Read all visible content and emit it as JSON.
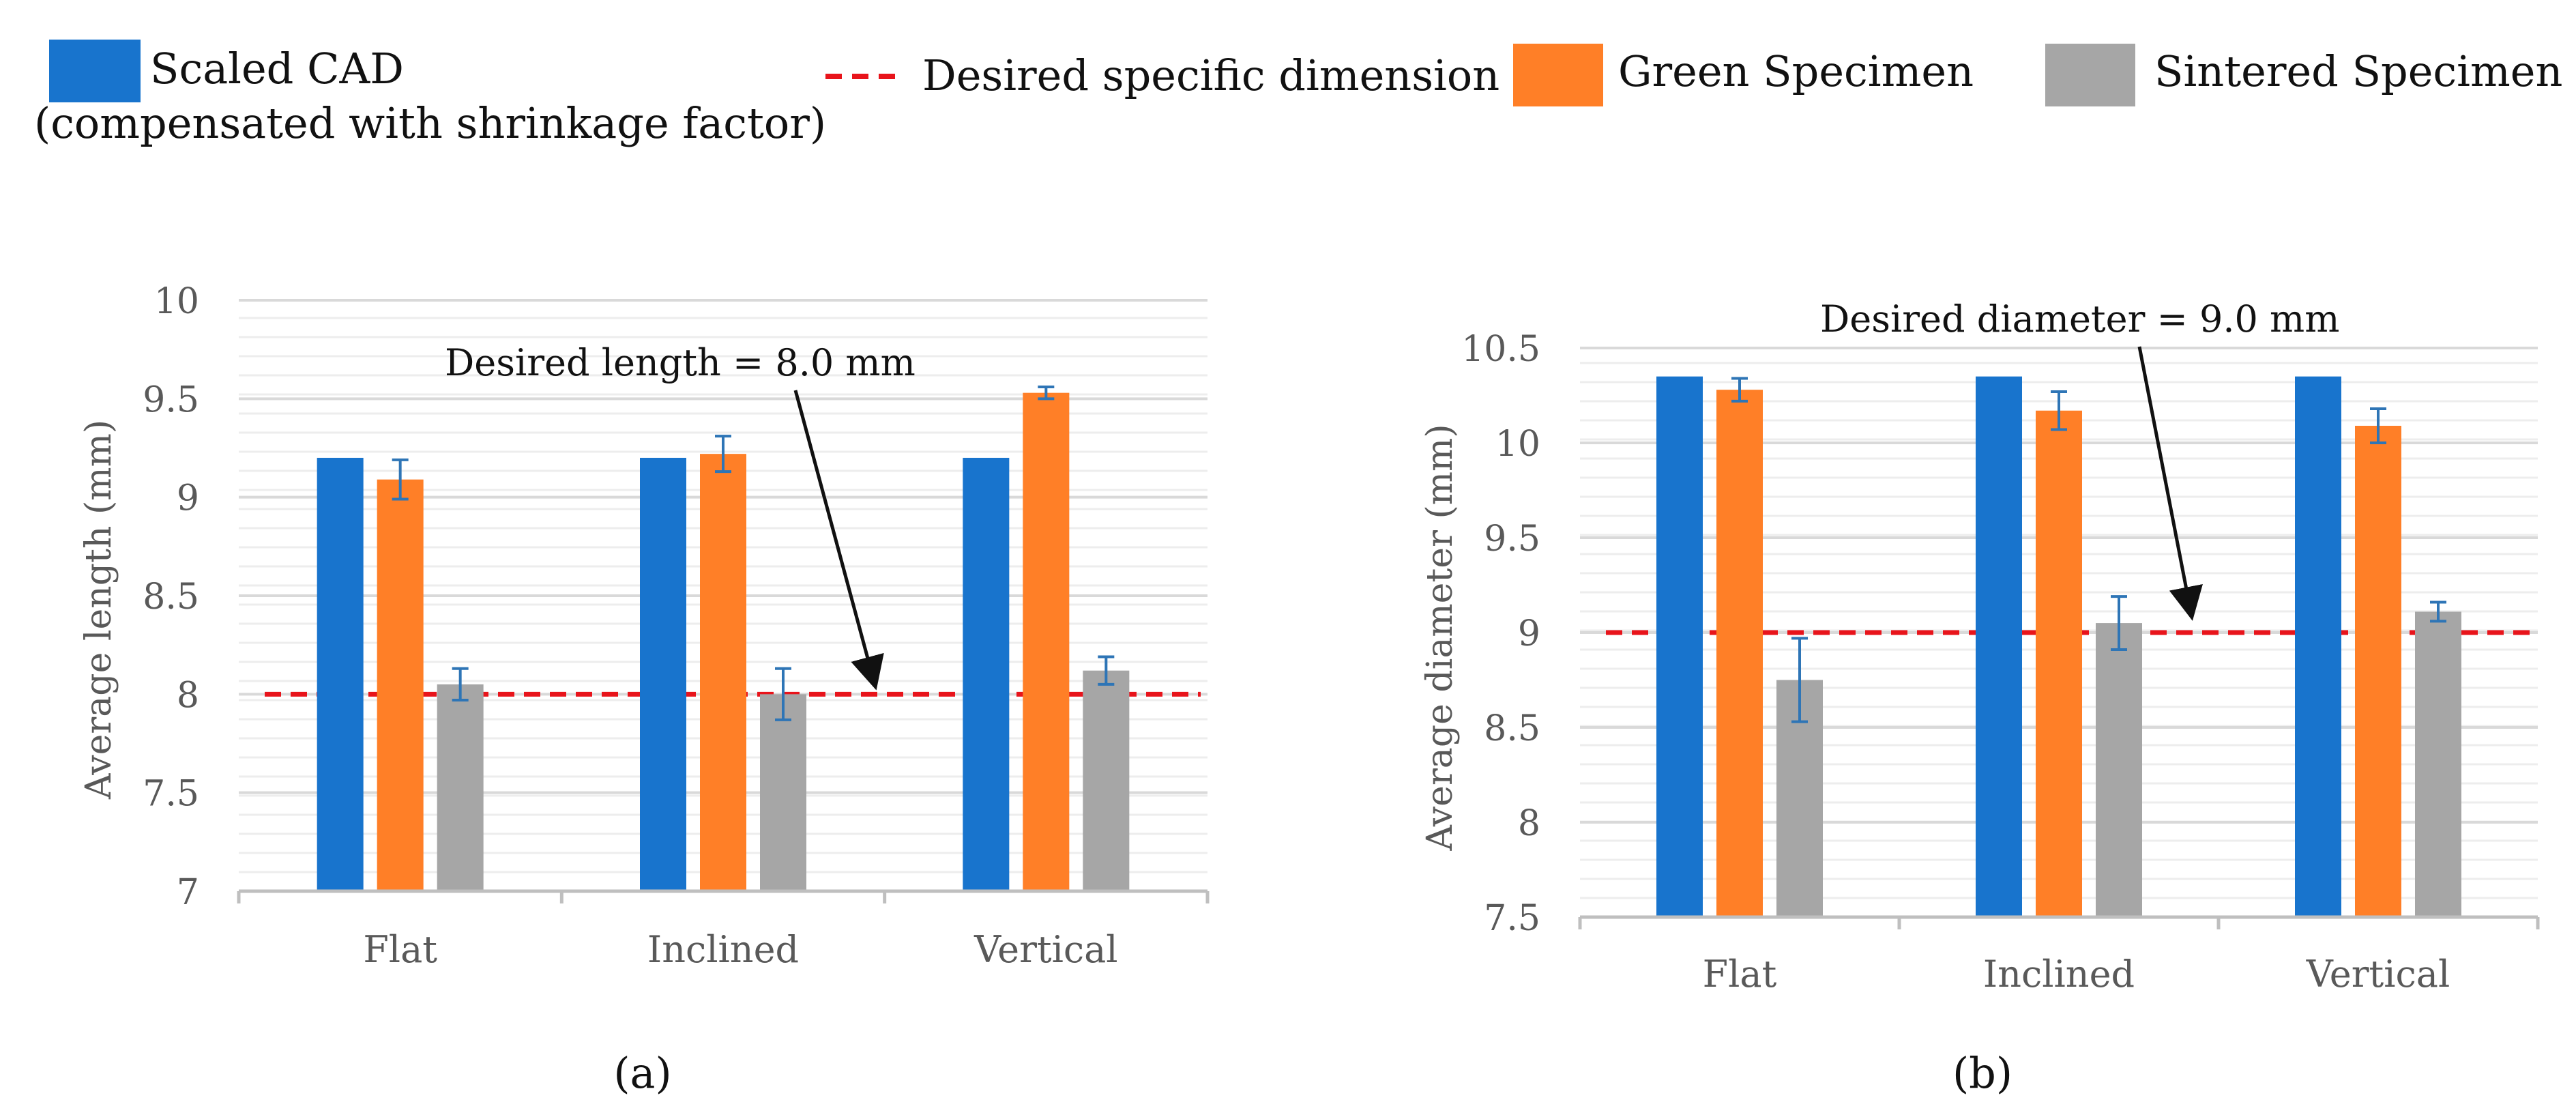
{
  "legend": {
    "items": [
      {
        "label": "Scaled CAD",
        "sublabel": "(compensated with shrinkage factor)",
        "kind": "swatch",
        "color": "#1874CD"
      },
      {
        "label": "Desired specific dimension",
        "kind": "dashed-line",
        "color": "#E8141B"
      },
      {
        "label": "Green Specimen",
        "kind": "swatch",
        "color": "#FF7F27"
      },
      {
        "label": "Sintered Specimen",
        "kind": "swatch",
        "color": "#A6A6A6"
      }
    ]
  },
  "colors": {
    "cad": "#1874CD",
    "green": "#FF7F27",
    "sintered": "#A6A6A6",
    "desired_line": "#E8141B",
    "error_bar": "#2E75B6",
    "grid": "#D9D9D9",
    "axis": "#BFBFBF",
    "tick_text": "#595959"
  },
  "chart_data": [
    {
      "type": "bar",
      "panel_label": "(a)",
      "categories": [
        "Flat",
        "Inclined",
        "Vertical"
      ],
      "series": [
        {
          "name": "Scaled CAD",
          "values": [
            9.2,
            9.2,
            9.2
          ],
          "errors": [
            0,
            0,
            0
          ]
        },
        {
          "name": "Green Specimen",
          "values": [
            9.09,
            9.22,
            9.53
          ],
          "errors": [
            0.1,
            0.09,
            0.03
          ]
        },
        {
          "name": "Sintered Specimen",
          "values": [
            8.05,
            8.0,
            8.12
          ],
          "errors": [
            0.08,
            0.13,
            0.07
          ]
        }
      ],
      "ylabel": "Average length (mm)",
      "xlabel": "",
      "ylim": [
        7,
        10
      ],
      "yticks": [
        7,
        7.5,
        8,
        8.5,
        9,
        9.5,
        10
      ],
      "ytick_labels": [
        "7",
        "7.5",
        "8",
        "8.5",
        "9",
        "9.5",
        "10"
      ],
      "desired_value": 8.0,
      "annotation": "Desired length = 8.0 mm"
    },
    {
      "type": "bar",
      "panel_label": "(b)",
      "categories": [
        "Flat",
        "Inclined",
        "Vertical"
      ],
      "series": [
        {
          "name": "Scaled CAD",
          "values": [
            10.35,
            10.35,
            10.35
          ],
          "errors": [
            0,
            0,
            0
          ]
        },
        {
          "name": "Green Specimen",
          "values": [
            10.28,
            10.17,
            10.09
          ],
          "errors": [
            0.06,
            0.1,
            0.09
          ]
        },
        {
          "name": "Sintered Specimen",
          "values": [
            8.75,
            9.05,
            9.11
          ],
          "errors": [
            0.22,
            0.14,
            0.05
          ]
        }
      ],
      "ylabel": "Average diameter (mm)",
      "xlabel": "",
      "ylim": [
        7.5,
        10.5
      ],
      "yticks": [
        7.5,
        8,
        8.5,
        9,
        9.5,
        10,
        10.5
      ],
      "ytick_labels": [
        "7.5",
        "8",
        "8.5",
        "9",
        "9.5",
        "10",
        "10.5"
      ],
      "desired_value": 9.0,
      "annotation": "Desired diameter = 9.0 mm"
    }
  ]
}
